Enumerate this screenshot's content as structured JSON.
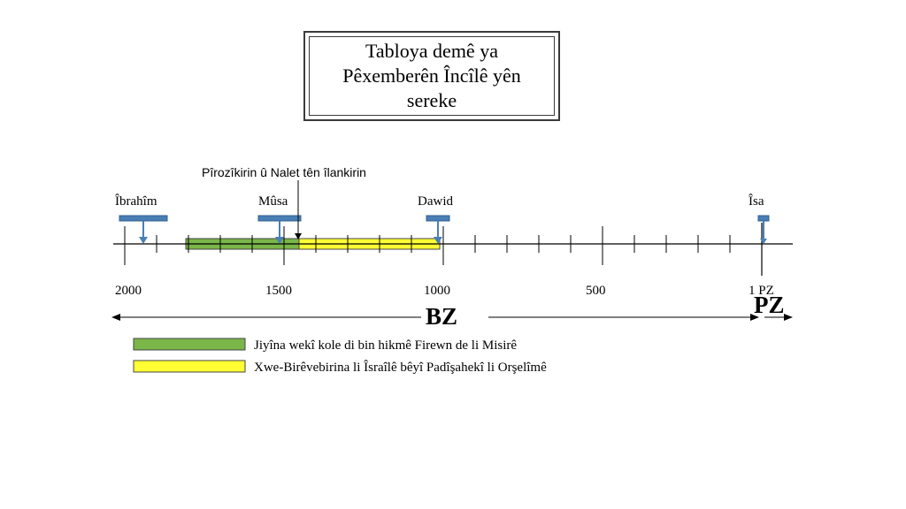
{
  "title": {
    "lines": [
      "Tabloya demê ya",
      "Pêxemberên Încîlê yên",
      "sereke"
    ]
  },
  "annotation": "Pîrozîkirin û Nalet tên îlankirin",
  "prophets": [
    {
      "name": "Îbrahîm",
      "year": 2000
    },
    {
      "name": "Mûsa",
      "year": 1500
    },
    {
      "name": "Dawid",
      "year": 1000
    },
    {
      "name": "Îsa",
      "year": 0
    }
  ],
  "ticks": [
    {
      "label": "2000"
    },
    {
      "label": "1500"
    },
    {
      "label": "1000"
    },
    {
      "label": "500"
    },
    {
      "label": "1 PZ"
    }
  ],
  "eras": {
    "bz": "BZ",
    "pz": "PZ"
  },
  "periods": [
    {
      "label": "Jiyîna wekî kole di bin hikmê Firewn de li Misirê",
      "color": "#7ab648"
    },
    {
      "label": "Xwe-Birêvebirina li Îsraîlê bêyî Padîşahekî li Orşelîmê",
      "color": "#ffff33"
    }
  ],
  "colors": {
    "marker": "#4a7fb5",
    "axis": "#000000"
  }
}
